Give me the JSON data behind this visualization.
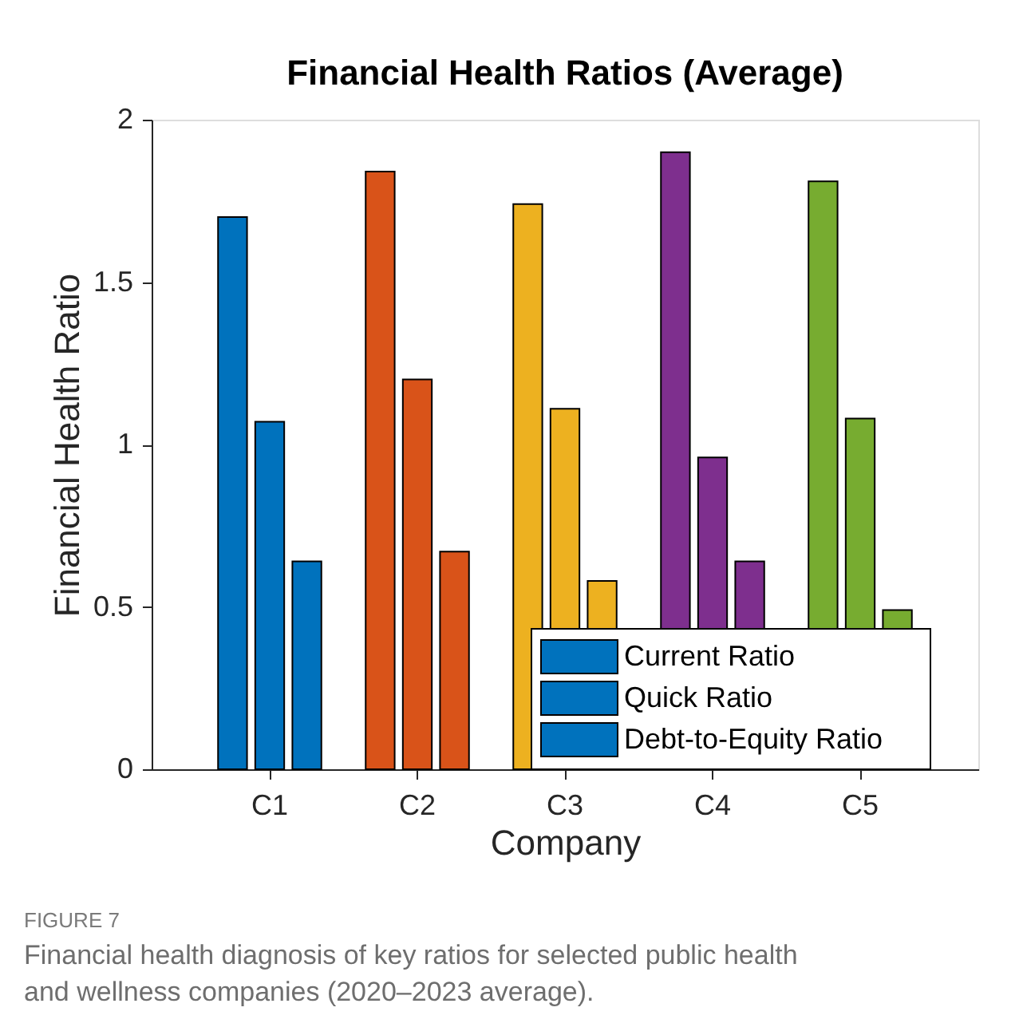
{
  "chart_data": {
    "type": "bar",
    "title": "Financial Health Ratios (Average)",
    "xlabel": "Company",
    "ylabel": "Financial Health Ratio",
    "categories": [
      "C1",
      "C2",
      "C3",
      "C4",
      "C5"
    ],
    "series": [
      {
        "name": "Current Ratio",
        "color": "#0072bd",
        "colors": [
          "#0072bd",
          "#d95319",
          "#edb120",
          "#7e2f8e",
          "#77ac30"
        ],
        "values": [
          1.7,
          1.84,
          1.74,
          1.9,
          1.81
        ]
      },
      {
        "name": "Quick Ratio",
        "color": "#0072bd",
        "colors": [
          "#0072bd",
          "#d95319",
          "#edb120",
          "#7e2f8e",
          "#77ac30"
        ],
        "values": [
          1.07,
          1.2,
          1.11,
          0.96,
          1.08
        ]
      },
      {
        "name": "Debt-to-Equity Ratio",
        "color": "#0072bd",
        "colors": [
          "#0072bd",
          "#d95319",
          "#edb120",
          "#7e2f8e",
          "#77ac30"
        ],
        "values": [
          0.64,
          0.67,
          0.58,
          0.64,
          0.49
        ]
      }
    ],
    "ylim": [
      0,
      2
    ],
    "yticks": [
      0,
      0.5,
      1,
      1.5,
      2
    ],
    "grid": false,
    "legend": "bottom right",
    "annotations": [
      "FIGURE 7",
      "Financial health diagnosis of key ratios for selected public health and wellness companies (2020–2023 average)."
    ]
  }
}
